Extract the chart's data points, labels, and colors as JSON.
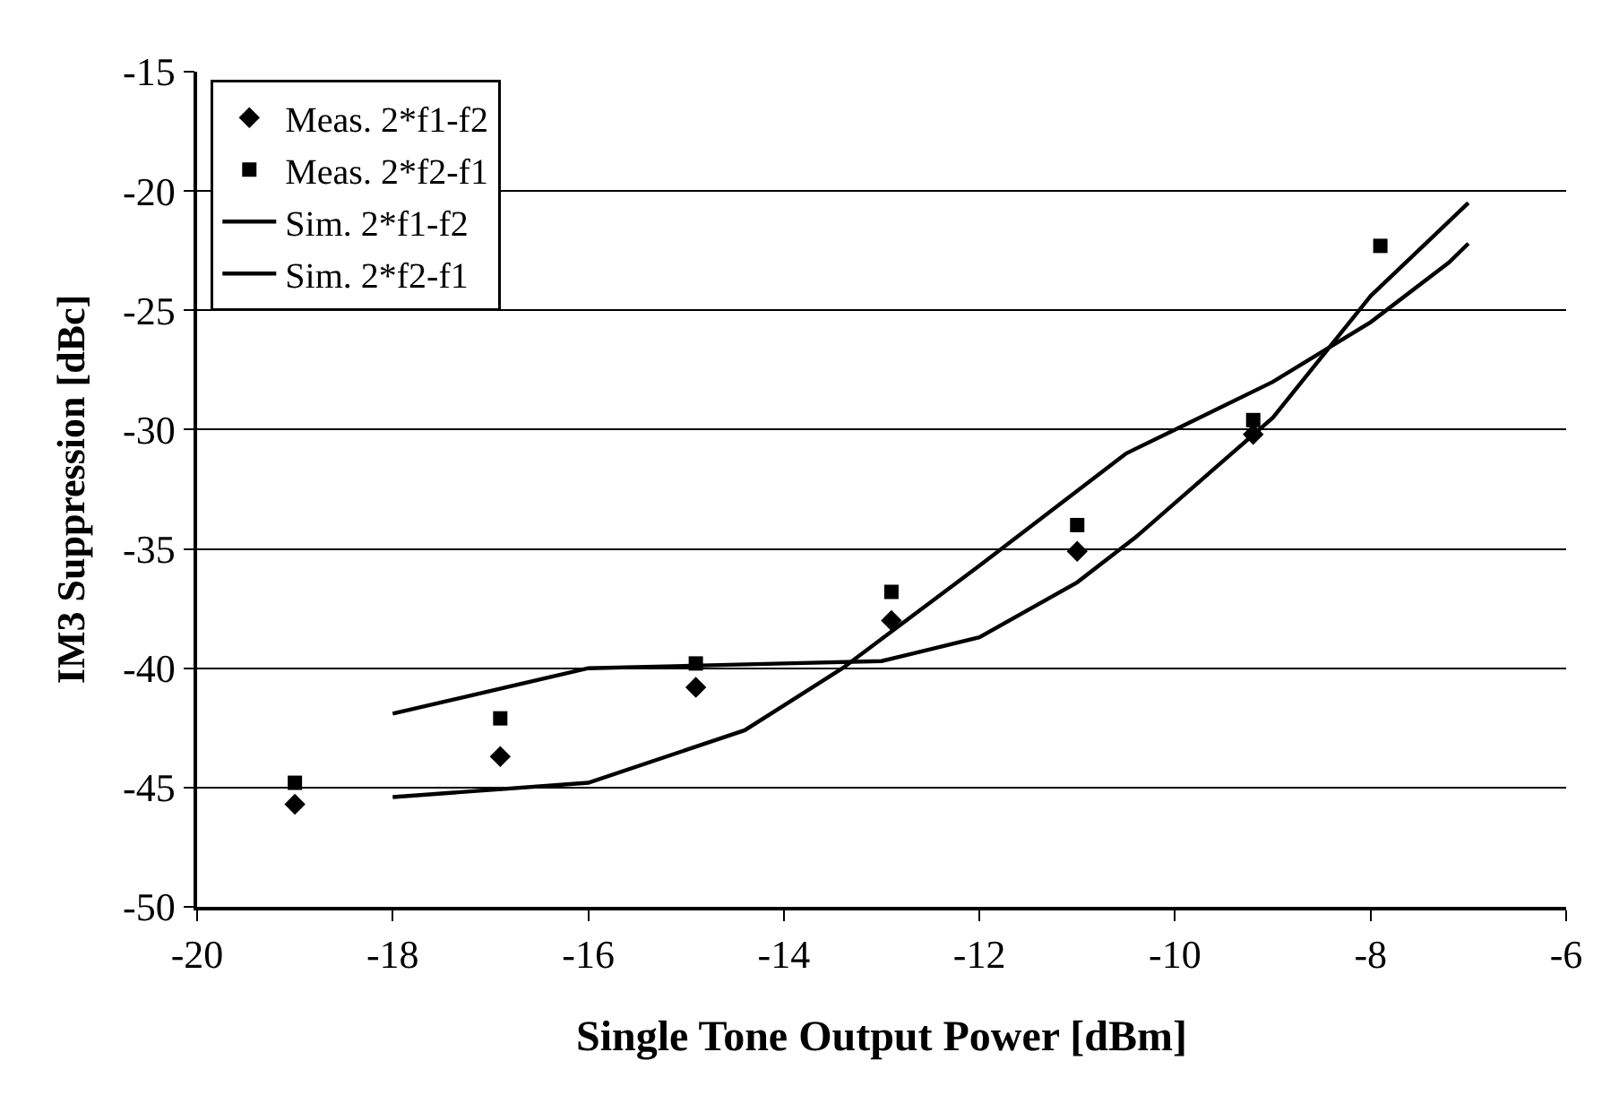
{
  "chart_data": {
    "type": "line",
    "xlabel": "Single Tone Output Power [dBm]",
    "ylabel": "IM3 Suppression [dBc]",
    "xlim": [
      -20,
      -6
    ],
    "xticks": [
      -20,
      -18,
      -16,
      -14,
      -12,
      -10,
      -8,
      -6
    ],
    "ylim": [
      -50,
      -15
    ],
    "yticks": [
      -50,
      -45,
      -40,
      -35,
      -30,
      -25,
      -20,
      -15
    ],
    "grid": "y",
    "legend": "top left",
    "series": [
      {
        "name": "Meas. 2*f1-f2",
        "type": "scatter",
        "marker": "diamond",
        "color": "#000000",
        "x": [
          -19,
          -16.9,
          -14.9,
          -12.9,
          -11,
          -9.2
        ],
        "values": [
          -45.7,
          -43.7,
          -40.8,
          -38.0,
          -35.1,
          -30.2
        ]
      },
      {
        "name": "Meas. 2*f2-f1",
        "type": "scatter",
        "marker": "square",
        "color": "#000000",
        "x": [
          -19,
          -16.9,
          -14.9,
          -12.9,
          -11,
          -9.2,
          -7.9
        ],
        "values": [
          -44.8,
          -42.1,
          -39.8,
          -36.8,
          -34.0,
          -29.6,
          -22.3
        ]
      },
      {
        "name": "Sim. 2*f1-f2",
        "marker": "none",
        "line_style": "solid",
        "color": "#000000",
        "x": [
          -18,
          -16,
          -14,
          -13,
          -12,
          -11,
          -10.4,
          -9,
          -8,
          -7
        ],
        "values": [
          -41.9,
          -40,
          -39.8,
          -39.7,
          -38.7,
          -36.4,
          -34.5,
          -29.5,
          -24.4,
          -20.5
        ]
      },
      {
        "name": "Sim. 2*f2-f1",
        "marker": "none",
        "line_style": "solid",
        "color": "#000000",
        "x": [
          -18,
          -16,
          -14.4,
          -13.4,
          -12,
          -10.5,
          -10,
          -9,
          -8,
          -7.2,
          -7
        ],
        "values": [
          -45.4,
          -44.8,
          -42.6,
          -40,
          -35.7,
          -31,
          -30,
          -28,
          -25.5,
          -23,
          -22.2
        ]
      }
    ]
  }
}
